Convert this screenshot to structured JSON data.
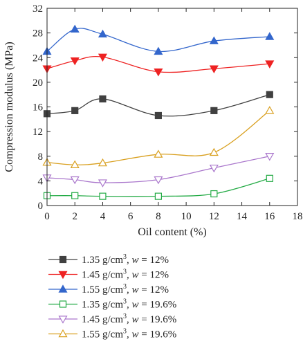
{
  "chart_data": {
    "type": "line",
    "title": "",
    "xlabel": "Oil content (%)",
    "ylabel": "Compression modulus (MPa)",
    "xlim": [
      0,
      18
    ],
    "ylim": [
      0,
      32
    ],
    "xticks": [
      0,
      2,
      4,
      6,
      8,
      10,
      12,
      14,
      16,
      18
    ],
    "yticks": [
      0,
      4,
      8,
      12,
      16,
      20,
      24,
      28,
      32
    ],
    "x": [
      0,
      2,
      4,
      8,
      12,
      16
    ],
    "legend_position": "below",
    "series": [
      {
        "name": "1.35 g/cm³, w = 12%",
        "legend": {
          "density": "1.35 g/cm",
          "sup": "3",
          "sep": ", ",
          "var": "w",
          "rest": " = 12%"
        },
        "values": [
          14.9,
          15.4,
          17.3,
          14.6,
          15.4,
          18.0
        ],
        "color": "#404040",
        "marker": "square-filled"
      },
      {
        "name": "1.45 g/cm³, w = 12%",
        "legend": {
          "density": "1.45 g/cm",
          "sup": "3",
          "sep": ", ",
          "var": "w",
          "rest": " = 12%"
        },
        "values": [
          22.2,
          23.5,
          24.1,
          21.7,
          22.2,
          23.0
        ],
        "color": "#ee2222",
        "marker": "triangle-down-filled"
      },
      {
        "name": "1.55 g/cm³, w = 12%",
        "legend": {
          "density": "1.55 g/cm",
          "sup": "3",
          "sep": ", ",
          "var": "w",
          "rest": " = 12%"
        },
        "values": [
          25.0,
          28.6,
          27.8,
          25.0,
          26.7,
          27.4
        ],
        "color": "#3366cc",
        "marker": "triangle-up-filled"
      },
      {
        "name": "1.35 g/cm³, w = 19.6%",
        "legend": {
          "density": "1.35 g/cm",
          "sup": "3",
          "sep": ", ",
          "var": "w",
          "rest": " = 19.6%"
        },
        "values": [
          1.6,
          1.6,
          1.5,
          1.5,
          1.9,
          4.4
        ],
        "color": "#22aa44",
        "marker": "square-open"
      },
      {
        "name": "1.45 g/cm³, w = 19.6%",
        "legend": {
          "density": "1.45 g/cm",
          "sup": "3",
          "sep": ", ",
          "var": "w",
          "rest": " = 19.6%"
        },
        "values": [
          4.5,
          4.2,
          3.7,
          4.2,
          6.1,
          8.0
        ],
        "color": "#aa77cc",
        "marker": "triangle-down-open"
      },
      {
        "name": "1.55 g/cm³, w = 19.6%",
        "legend": {
          "density": "1.55 g/cm",
          "sup": "3",
          "sep": ", ",
          "var": "w",
          "rest": " = 19.6%"
        },
        "values": [
          7.0,
          6.6,
          6.9,
          8.3,
          8.6,
          15.4
        ],
        "color": "#d9a020",
        "marker": "triangle-up-open"
      }
    ]
  }
}
